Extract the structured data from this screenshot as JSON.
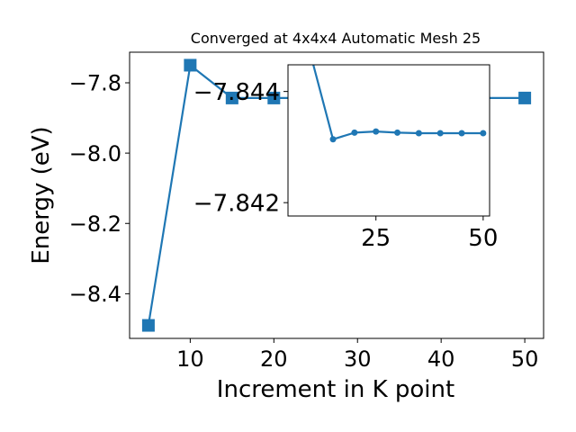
{
  "chart_data": [
    {
      "type": "line",
      "title": "Converged at 4x4x4 Automatic Mesh 25",
      "xlabel": "Increment in K point",
      "ylabel": "Energy (eV)",
      "x": [
        5,
        10,
        15,
        20,
        25,
        30,
        35,
        40,
        45,
        50
      ],
      "series": [
        {
          "values": [
            -8.49,
            -7.75,
            -7.8433,
            -7.8433,
            -7.8433,
            -7.8433,
            -7.8433,
            -7.8433,
            -7.8433,
            -7.8433
          ]
        }
      ],
      "xlim": [
        2.75,
        52.25
      ],
      "ylim": [
        -8.527,
        -7.713
      ],
      "xticks": [
        10,
        20,
        30,
        40,
        50
      ],
      "yticks": [
        -7.8,
        -8.0,
        -8.2,
        -8.4
      ],
      "xtick_labels": [
        "10",
        "20",
        "30",
        "40",
        "50"
      ],
      "ytick_labels": [
        "−7.8",
        "−8.0",
        "−8.2",
        "−8.4"
      ],
      "marker": "square",
      "color": "#1f77b4",
      "grid": false
    },
    {
      "type": "line",
      "title": "",
      "xlabel": "",
      "ylabel": "",
      "x": [
        10,
        15,
        20,
        25,
        30,
        35,
        40,
        45,
        50
      ],
      "series": [
        {
          "values": [
            -7.8446,
            -7.84314,
            -7.84326,
            -7.84328,
            -7.84326,
            -7.84325,
            -7.84325,
            -7.84325,
            -7.84325
          ]
        }
      ],
      "xlim": [
        4.5,
        51.5
      ],
      "ylim": [
        -7.84176,
        -7.84448
      ],
      "xticks": [
        25,
        50
      ],
      "yticks": [
        -7.844,
        -7.842
      ],
      "xtick_labels": [
        "25",
        "50"
      ],
      "ytick_labels": [
        "−7.844",
        "−7.842"
      ],
      "marker": "circle",
      "color": "#1f77b4",
      "grid": false
    }
  ]
}
